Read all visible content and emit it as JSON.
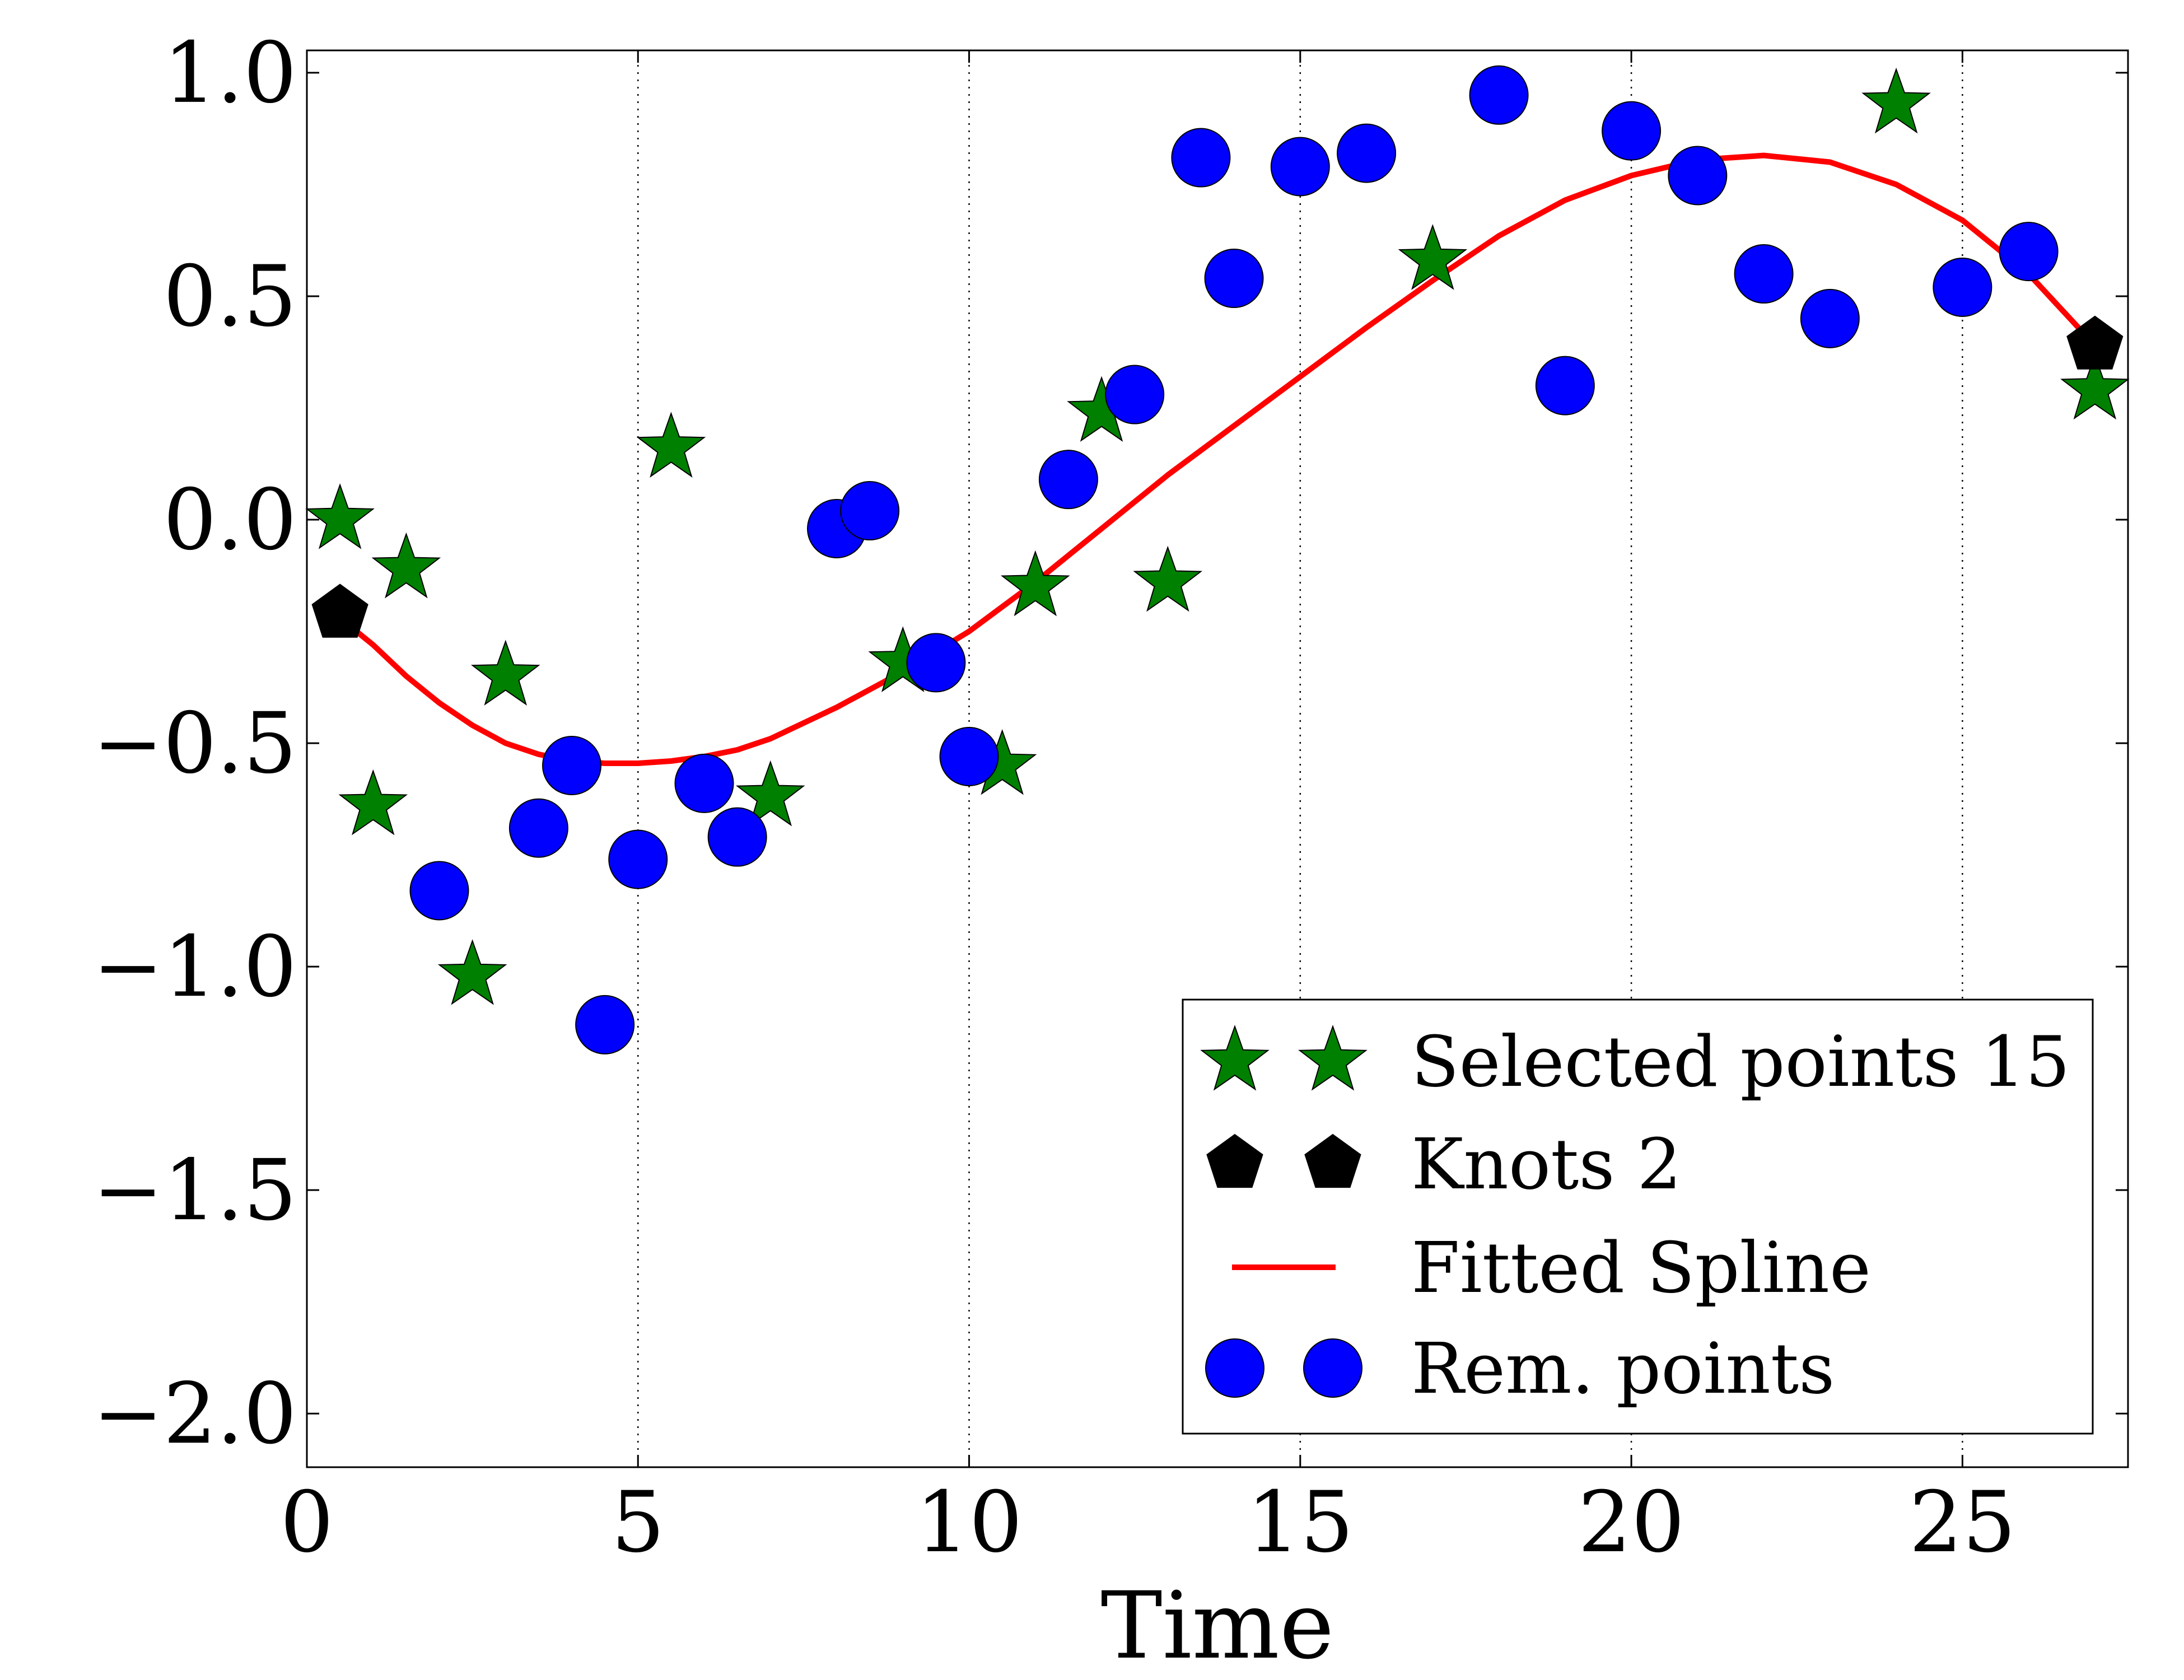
{
  "chart_data": {
    "type": "scatter",
    "title": "",
    "xlabel": "Time",
    "ylabel": "",
    "xlim": [
      0,
      27.5
    ],
    "ylim": [
      -2.12,
      1.05
    ],
    "x_ticks": [
      0,
      5,
      10,
      15,
      20,
      25
    ],
    "x_tick_labels": [
      "0",
      "5",
      "10",
      "15",
      "20",
      "25"
    ],
    "y_ticks": [
      1.0,
      0.5,
      0.0,
      -0.5,
      -1.0,
      -1.5,
      -2.0
    ],
    "y_tick_labels": [
      "1.0",
      "0.5",
      "0.0",
      "−0.5",
      "−1.0",
      "−1.5",
      "−2.0"
    ],
    "vertical_grid": true,
    "grid_style": "dotted",
    "legend_position": "lower-right",
    "series": [
      {
        "name": "Selected points 15",
        "marker": "star",
        "color": "#008000",
        "points": [
          [
            0.5,
            0.0
          ],
          [
            1.0,
            -0.64
          ],
          [
            1.5,
            -0.11
          ],
          [
            2.5,
            -1.02
          ],
          [
            3.0,
            -0.35
          ],
          [
            5.5,
            0.16
          ],
          [
            7.0,
            -0.62
          ],
          [
            9.0,
            -0.32
          ],
          [
            10.5,
            -0.55
          ],
          [
            11.0,
            -0.15
          ],
          [
            12.0,
            0.24
          ],
          [
            13.0,
            -0.14
          ],
          [
            17.0,
            0.58
          ],
          [
            24.0,
            0.93
          ],
          [
            27.0,
            0.29
          ]
        ]
      },
      {
        "name": "Knots 2",
        "marker": "pentagon",
        "color": "#000000",
        "points": [
          [
            0.5,
            -0.21
          ],
          [
            27.0,
            0.39
          ]
        ]
      },
      {
        "name": "Fitted Spline",
        "marker": "line",
        "color": "#ff0000",
        "points": [
          [
            0.5,
            -0.22
          ],
          [
            1.0,
            -0.28
          ],
          [
            1.5,
            -0.35
          ],
          [
            2.0,
            -0.41
          ],
          [
            2.5,
            -0.46
          ],
          [
            3.0,
            -0.5
          ],
          [
            3.5,
            -0.525
          ],
          [
            4.0,
            -0.54
          ],
          [
            4.5,
            -0.545
          ],
          [
            5.0,
            -0.545
          ],
          [
            5.5,
            -0.54
          ],
          [
            6.0,
            -0.53
          ],
          [
            6.5,
            -0.515
          ],
          [
            7.0,
            -0.49
          ],
          [
            8.0,
            -0.42
          ],
          [
            9.0,
            -0.34
          ],
          [
            10.0,
            -0.25
          ],
          [
            11.0,
            -0.14
          ],
          [
            12.0,
            -0.02
          ],
          [
            13.0,
            0.1
          ],
          [
            14.0,
            0.21
          ],
          [
            15.0,
            0.32
          ],
          [
            16.0,
            0.43
          ],
          [
            17.0,
            0.535
          ],
          [
            18.0,
            0.635
          ],
          [
            19.0,
            0.715
          ],
          [
            20.0,
            0.77
          ],
          [
            21.0,
            0.805
          ],
          [
            22.0,
            0.815
          ],
          [
            23.0,
            0.8
          ],
          [
            24.0,
            0.75
          ],
          [
            25.0,
            0.67
          ],
          [
            26.0,
            0.55
          ],
          [
            27.0,
            0.39
          ]
        ]
      },
      {
        "name": "Rem. points",
        "marker": "circle",
        "color": "#0000ff",
        "points": [
          [
            2.0,
            -0.83
          ],
          [
            3.5,
            -0.69
          ],
          [
            4.0,
            -0.55
          ],
          [
            4.5,
            -1.13
          ],
          [
            5.0,
            -0.76
          ],
          [
            6.0,
            -0.59
          ],
          [
            6.5,
            -0.71
          ],
          [
            8.0,
            -0.02
          ],
          [
            8.5,
            0.02
          ],
          [
            9.5,
            -0.32
          ],
          [
            10.0,
            -0.53
          ],
          [
            11.5,
            0.09
          ],
          [
            12.5,
            0.28
          ],
          [
            13.5,
            0.81
          ],
          [
            14.0,
            0.54
          ],
          [
            15.0,
            0.79
          ],
          [
            16.0,
            0.82
          ],
          [
            18.0,
            0.95
          ],
          [
            19.0,
            0.3
          ],
          [
            20.0,
            0.87
          ],
          [
            21.0,
            0.77
          ],
          [
            22.0,
            0.55
          ],
          [
            23.0,
            0.45
          ],
          [
            25.0,
            0.52
          ],
          [
            26.0,
            0.6
          ]
        ]
      }
    ]
  }
}
